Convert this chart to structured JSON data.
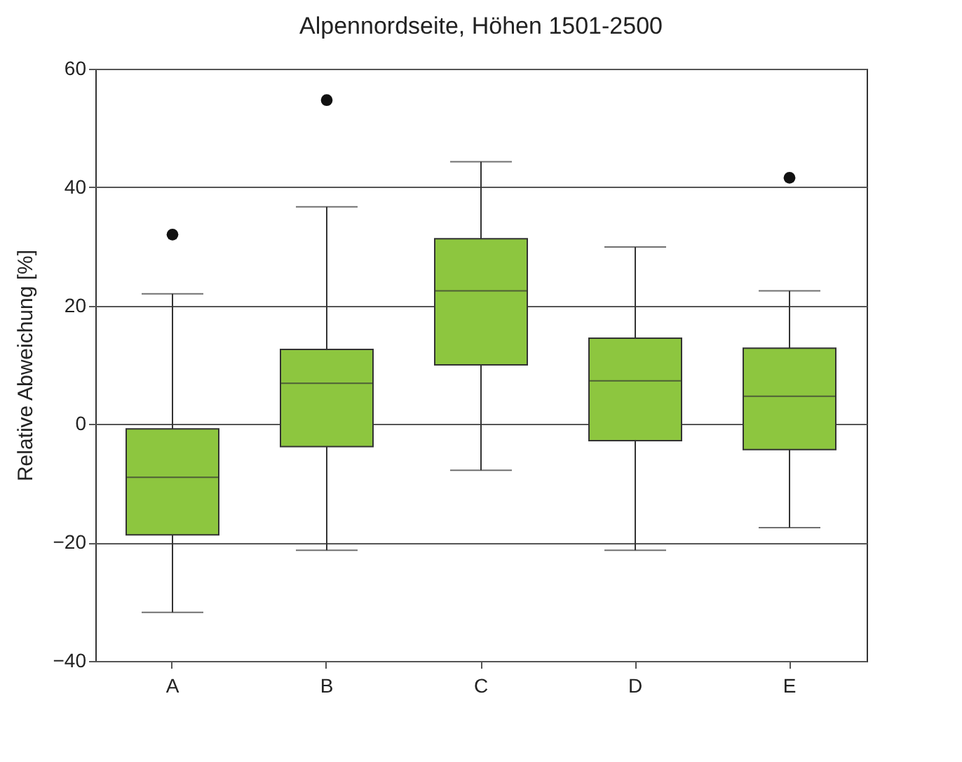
{
  "chart_data": {
    "type": "box",
    "title": "Alpennordseite, Höhen 1501-2500",
    "ylabel": "Relative Abweichung [%]",
    "categories": [
      "A",
      "B",
      "C",
      "D",
      "E"
    ],
    "series": [
      {
        "color": "#8dc63f",
        "boxes": [
          {
            "low": -31.8,
            "q1": -18.7,
            "median": -9,
            "q3": -0.8,
            "high": 22,
            "outliers": [
              32
            ]
          },
          {
            "low": -21.3,
            "q1": -3.8,
            "median": 6.9,
            "q3": 12.6,
            "high": 36.7,
            "outliers": [
              54.7
            ]
          },
          {
            "low": -7.8,
            "q1": 10,
            "median": 22.5,
            "q3": 31.3,
            "high": 44.3
          },
          {
            "low": -21.3,
            "q1": -2.8,
            "median": 7.3,
            "q3": 14.5,
            "high": 29.9
          },
          {
            "low": -17.5,
            "q1": -4.3,
            "median": 4.7,
            "q3": 12.8,
            "high": 22.5,
            "outliers": [
              41.6
            ]
          }
        ]
      }
    ],
    "ylim": [
      -40,
      60
    ],
    "yticks": [
      -40,
      -20,
      0,
      20,
      40,
      60
    ],
    "grid": "y"
  }
}
